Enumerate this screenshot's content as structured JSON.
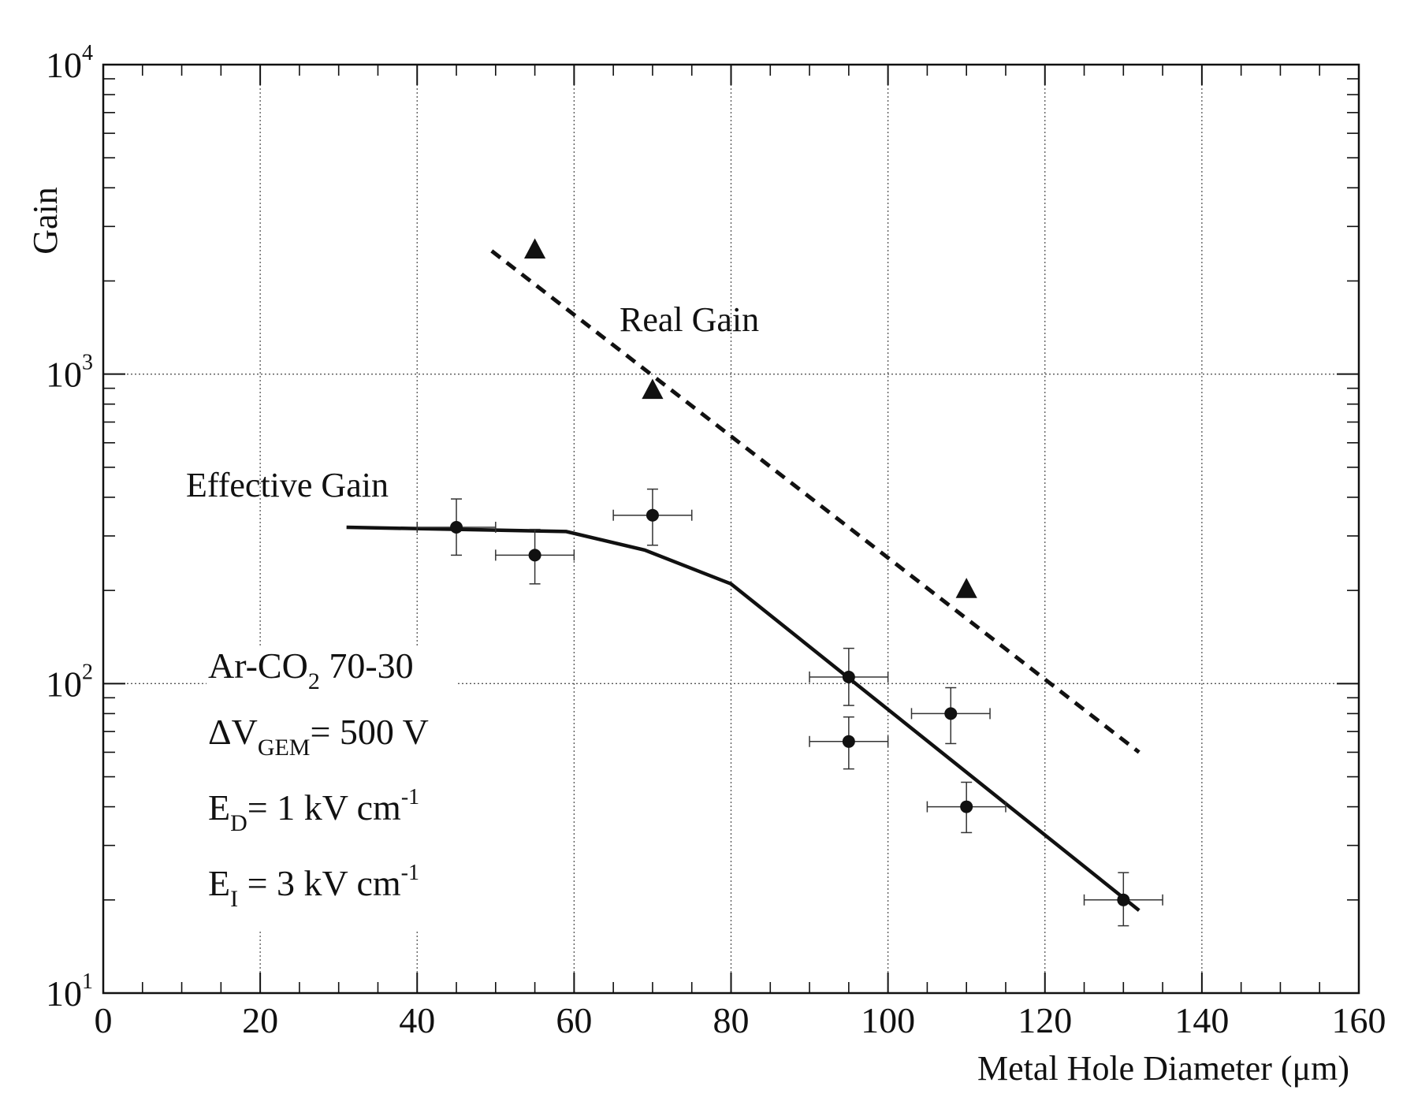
{
  "chart_data": {
    "type": "scatter",
    "xlabel": "Metal Hole Diameter (μm)",
    "ylabel": "Gain",
    "xlim": [
      0,
      160
    ],
    "ylim": [
      10,
      10000
    ],
    "yscale": "log",
    "grid": true,
    "x_ticks": [
      "0",
      "20",
      "40",
      "60",
      "80",
      "100",
      "120",
      "140",
      "160"
    ],
    "y_ticks": [
      {
        "value": 10,
        "base": "10",
        "exp": "1"
      },
      {
        "value": 100,
        "base": "10",
        "exp": "2"
      },
      {
        "value": 1000,
        "base": "10",
        "exp": "3"
      },
      {
        "value": 10000,
        "base": "10",
        "exp": "4"
      }
    ],
    "series": [
      {
        "name": "Effective Gain",
        "marker": "circle",
        "points": [
          {
            "x": 45,
            "y": 320,
            "xerr": 5,
            "yerr_low": 60,
            "yerr_high": 75
          },
          {
            "x": 55,
            "y": 260,
            "xerr": 5,
            "yerr_low": 50,
            "yerr_high": 55
          },
          {
            "x": 70,
            "y": 350,
            "xerr": 5,
            "yerr_low": 70,
            "yerr_high": 75
          },
          {
            "x": 95,
            "y": 105,
            "xerr": 5,
            "yerr_low": 20,
            "yerr_high": 25
          },
          {
            "x": 95,
            "y": 65,
            "xerr": 5,
            "yerr_low": 12,
            "yerr_high": 13
          },
          {
            "x": 108,
            "y": 80,
            "xerr": 5,
            "yerr_low": 16,
            "yerr_high": 17
          },
          {
            "x": 110,
            "y": 40,
            "xerr": 5,
            "yerr_low": 7,
            "yerr_high": 8
          },
          {
            "x": 130,
            "y": 20,
            "xerr": 5,
            "yerr_low": 3.5,
            "yerr_high": 4.5
          }
        ],
        "fit": {
          "style": "solid",
          "x": [
            31,
            59,
            69,
            80,
            132
          ],
          "y": [
            320,
            310,
            270,
            210,
            18.5
          ]
        }
      },
      {
        "name": "Real Gain",
        "marker": "triangle",
        "points": [
          {
            "x": 55,
            "y": 2500
          },
          {
            "x": 70,
            "y": 880
          },
          {
            "x": 110,
            "y": 200
          }
        ],
        "fit": {
          "style": "dashed",
          "x": [
            49.5,
            132
          ],
          "y": [
            2500,
            60
          ]
        }
      }
    ],
    "annotations": {
      "real_gain": "Real Gain",
      "effective_gain": "Effective Gain"
    },
    "conditions": {
      "gas_prefix": "Ar-CO",
      "gas_sub": "2",
      "gas_suffix": " 70-30",
      "dv_prefix": "ΔV",
      "dv_sub": "GEM",
      "dv_suffix": "= 500 V",
      "ed_prefix": "E",
      "ed_sub": "D",
      "ed_suffix": "= 1 kV cm",
      "ed_sup": "-1",
      "ei_prefix": "E",
      "ei_sub": "I",
      "ei_suffix": " = 3 kV cm",
      "ei_sup": "-1"
    }
  }
}
